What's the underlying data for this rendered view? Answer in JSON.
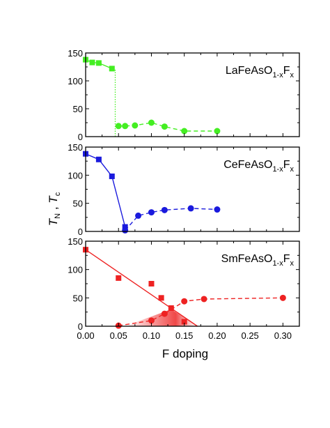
{
  "chart_data": {
    "type": "scatter",
    "xlabel": "F doping",
    "ylabel": {
      "main": "T",
      "sub1": "N",
      "sep": " , ",
      "main2": "T",
      "sub2": "c"
    },
    "xlim": [
      0.0,
      0.325
    ],
    "xticks": [
      "0.00",
      "0.05",
      "0.10",
      "0.15",
      "0.20",
      "0.25",
      "0.30"
    ],
    "ylim": [
      0,
      150
    ],
    "yticks": [
      "0",
      "50",
      "100",
      "150"
    ],
    "grid": false,
    "panels": [
      {
        "label_parts": [
          "LaFeAsO",
          "1-x",
          "F",
          "x"
        ],
        "color": "#44ee22",
        "series": [
          {
            "marker": "square",
            "line": "solid",
            "x": [
              0.0,
              0.01,
              0.02,
              0.04
            ],
            "y": [
              138,
              133,
              132,
              122
            ]
          },
          {
            "marker": "circle",
            "line": "dashed",
            "x": [
              0.05,
              0.06,
              0.075,
              0.1,
              0.12,
              0.15,
              0.2
            ],
            "y": [
              19,
              19,
              20,
              25,
              18,
              10,
              10
            ]
          }
        ],
        "boundary_line": {
          "style": "dotted",
          "x": 0.045,
          "y": [
            0,
            122
          ]
        }
      },
      {
        "label_parts": [
          "CeFeAsO",
          "1-x",
          "F",
          "x"
        ],
        "color": "#1a1add",
        "series": [
          {
            "marker": "square",
            "line": "solid",
            "x": [
              0.0,
              0.02,
              0.04,
              0.06
            ],
            "y": [
              138,
              128,
              98,
              8
            ]
          },
          {
            "marker": "circle",
            "line": "dashed",
            "x": [
              0.06,
              0.08,
              0.1,
              0.12,
              0.16,
              0.2
            ],
            "y": [
              2,
              28,
              34,
              38,
              41,
              39
            ]
          }
        ]
      },
      {
        "label_parts": [
          "SmFeAsO",
          "1-x",
          "F",
          "x"
        ],
        "color": "#ee2222",
        "series": [
          {
            "marker": "square",
            "line": "none",
            "x": [
              0.0,
              0.05,
              0.1,
              0.115,
              0.13,
              0.15
            ],
            "y": [
              135,
              85,
              75,
              50,
              32,
              8
            ]
          },
          {
            "marker": "circle",
            "line": "dashed",
            "x": [
              0.05,
              0.1,
              0.12,
              0.15,
              0.18,
              0.3
            ],
            "y": [
              1,
              10,
              22,
              44,
              48,
              50
            ]
          }
        ],
        "fit_line": {
          "x": [
            0.0,
            0.17
          ],
          "y": [
            135,
            0
          ]
        },
        "shaded_region": {
          "x": [
            0.06,
            0.13,
            0.17
          ],
          "y": [
            0,
            30,
            0
          ]
        }
      }
    ]
  }
}
